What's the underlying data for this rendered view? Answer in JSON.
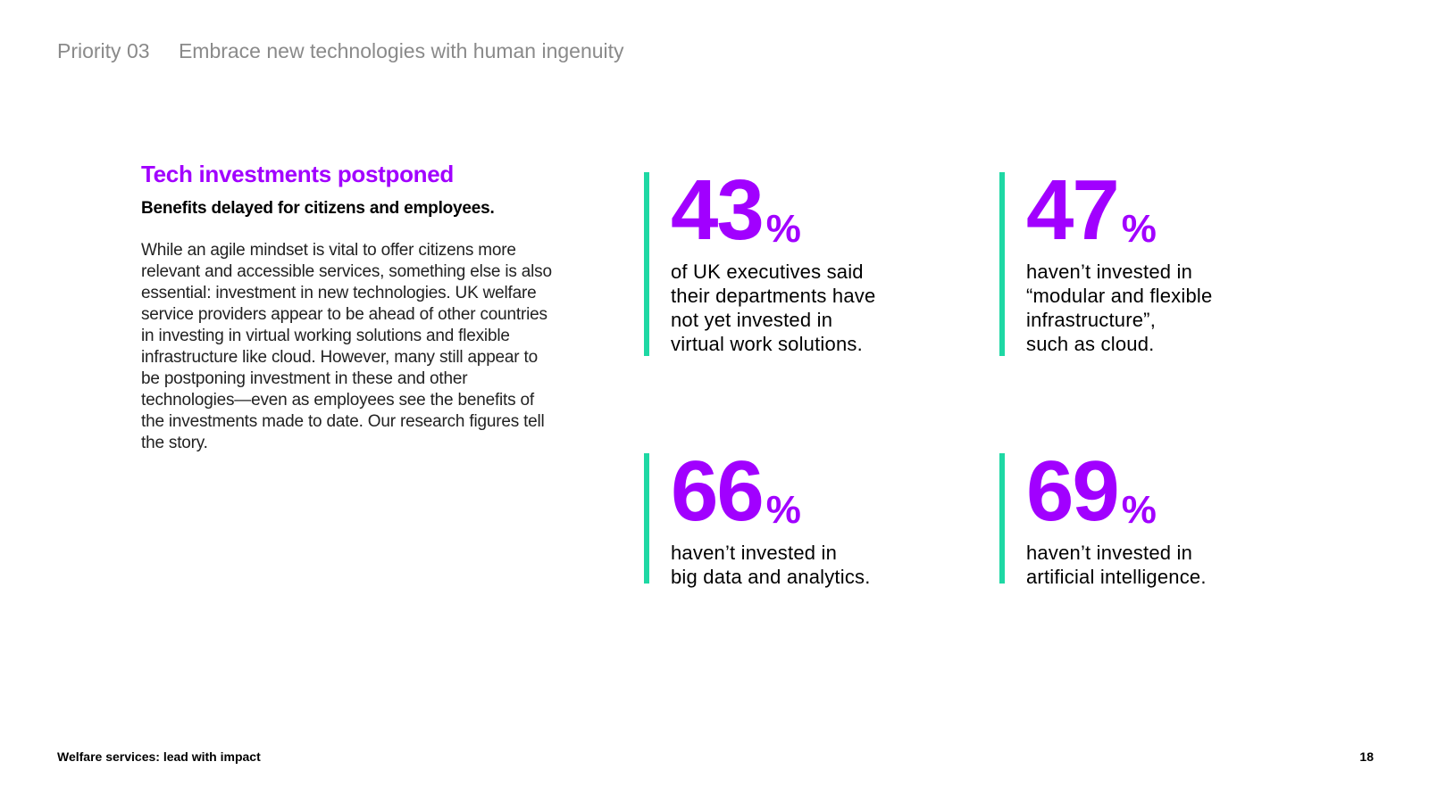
{
  "header": {
    "priority": "Priority 03",
    "heading": "Embrace new technologies with human ingenuity"
  },
  "intro": {
    "title": "Tech investments postponed",
    "subtitle": "Benefits delayed for citizens and employees.",
    "body": "While an agile mindset is vital to offer citizens more relevant and accessible services, something else is also essential: investment in new technologies. UK welfare service providers appear to be ahead of other countries in investing in virtual working solutions and flexible infrastructure like cloud. However, many still appear to be postponing investment in these and other technologies—even as employees see the benefits of the investments made to date. Our research figures tell the story."
  },
  "stats": [
    {
      "value": "43",
      "unit": "%",
      "description": "of UK executives said\ntheir departments have\nnot yet invested in\nvirtual work solutions."
    },
    {
      "value": "47",
      "unit": "%",
      "description": "haven’t invested in\n“modular and flexible\ninfrastructure”,\nsuch as cloud."
    },
    {
      "value": "66",
      "unit": "%",
      "description": "haven’t invested in\nbig data and analytics."
    },
    {
      "value": "69",
      "unit": "%",
      "description": "haven’t invested in\nartificial intelligence."
    }
  ],
  "footer": {
    "title": "Welfare services: lead with impact",
    "page_number": "18"
  },
  "colors": {
    "accent_purple": "#a100ff",
    "accent_green": "#1ed8a4",
    "header_gray": "#8a8a8a"
  }
}
